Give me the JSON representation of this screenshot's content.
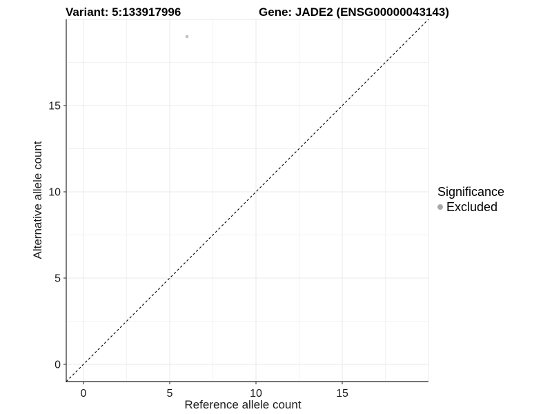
{
  "chart_data": {
    "type": "scatter",
    "title_left": "Variant: 5:133917996",
    "title_right": "Gene: JADE2 (ENSG00000043143)",
    "xlabel": "Reference allele count",
    "ylabel": "Alternative allele count",
    "xlim": [
      -1,
      20
    ],
    "ylim": [
      -1,
      20
    ],
    "xticks": [
      0,
      5,
      10,
      15
    ],
    "yticks": [
      0,
      5,
      10,
      15
    ],
    "major_gridlines": [
      0,
      5,
      10,
      15,
      20
    ],
    "minor_gridlines": [
      2.5,
      7.5,
      12.5,
      17.5
    ],
    "grid": "on",
    "points": [
      {
        "x": 6,
        "y": 19,
        "series": "Excluded"
      }
    ],
    "point_color": "#c0c0c0",
    "point_radius": 2.3,
    "reference_line": {
      "type": "identity",
      "style": "dashed",
      "color": "#000000",
      "x1": -1,
      "y1": -1,
      "x2": 20,
      "y2": 20
    },
    "axis_line_color": "#474747",
    "major_grid_color": "#e9e9e9",
    "minor_grid_color": "#f2f2f2",
    "legend": {
      "title": "Significance",
      "position": "right",
      "items": [
        {
          "label": "Excluded",
          "color": "#a8a8a8"
        }
      ]
    }
  }
}
